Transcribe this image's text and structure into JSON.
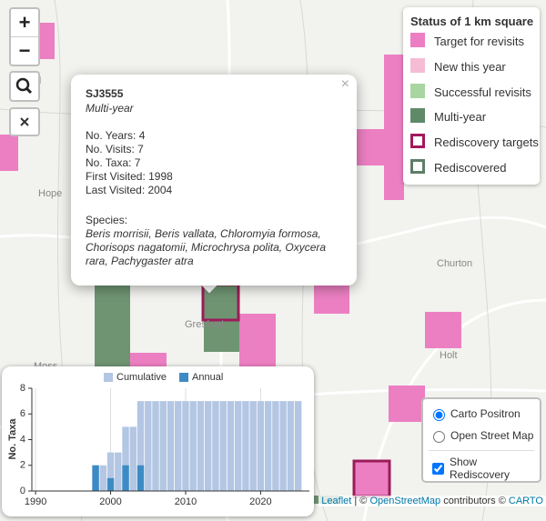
{
  "map": {
    "labels": [
      "dd",
      "Hope",
      "Gresford",
      "Churton",
      "Holt",
      "Moss"
    ]
  },
  "controls": {
    "zoom_in": "+",
    "zoom_out": "−"
  },
  "legend": {
    "title": "Status of 1 km square",
    "items": [
      "Target for revisits",
      "New this year",
      "Successful revisits",
      "Multi-year",
      "Rediscovery targets",
      "Rediscovered"
    ]
  },
  "popup": {
    "title": "SJ3555",
    "status": "Multi-year",
    "close": "×",
    "details": [
      "No. Years: 4",
      "No. Visits: 7",
      "No. Taxa: 7",
      "First Visited: 1998",
      "Last Visited: 2004"
    ],
    "species_label": "Species:",
    "species": "Beris morrisii, Beris vallata, Chloromyia formosa, Chorisops nagatomii, Microchrysa polita, Oxycera rara, Pachygaster atra"
  },
  "layers": {
    "options": [
      "Carto Positron",
      "Open Street Map"
    ],
    "checkbox": "Show Rediscovery"
  },
  "attribution": [
    "Leaflet",
    "| ©",
    "OpenStreetMap",
    "contributors ©",
    "CARTO"
  ],
  "chart_data": {
    "type": "bar",
    "y_label": "No. Taxa",
    "x": [
      1998,
      1999,
      2000,
      2001,
      2002,
      2003,
      2004,
      2005,
      2006,
      2007,
      2008,
      2009,
      2010,
      2011,
      2012,
      2013,
      2014,
      2015,
      2016,
      2017,
      2018,
      2019,
      2020,
      2021,
      2022,
      2023,
      2024,
      2025
    ],
    "series": [
      {
        "name": "Cumulative",
        "color": "#b3c6e3",
        "values": [
          2,
          2,
          3,
          3,
          5,
          5,
          7,
          7,
          7,
          7,
          7,
          7,
          7,
          7,
          7,
          7,
          7,
          7,
          7,
          7,
          7,
          7,
          7,
          7,
          7,
          7,
          7,
          7
        ]
      },
      {
        "name": "Annual",
        "color": "#3d8bc4",
        "values": [
          2,
          0,
          1,
          0,
          2,
          0,
          2,
          0,
          0,
          0,
          0,
          0,
          0,
          0,
          0,
          0,
          0,
          0,
          0,
          0,
          0,
          0,
          0,
          0,
          0,
          0,
          0,
          0
        ]
      }
    ],
    "xlim": [
      1989.5,
      2026.5
    ],
    "xticks": [
      1990,
      2000,
      2010,
      2020
    ],
    "ylim": [
      0,
      8
    ],
    "yticks": [
      0,
      2,
      4,
      6,
      8
    ],
    "grid": "x"
  }
}
